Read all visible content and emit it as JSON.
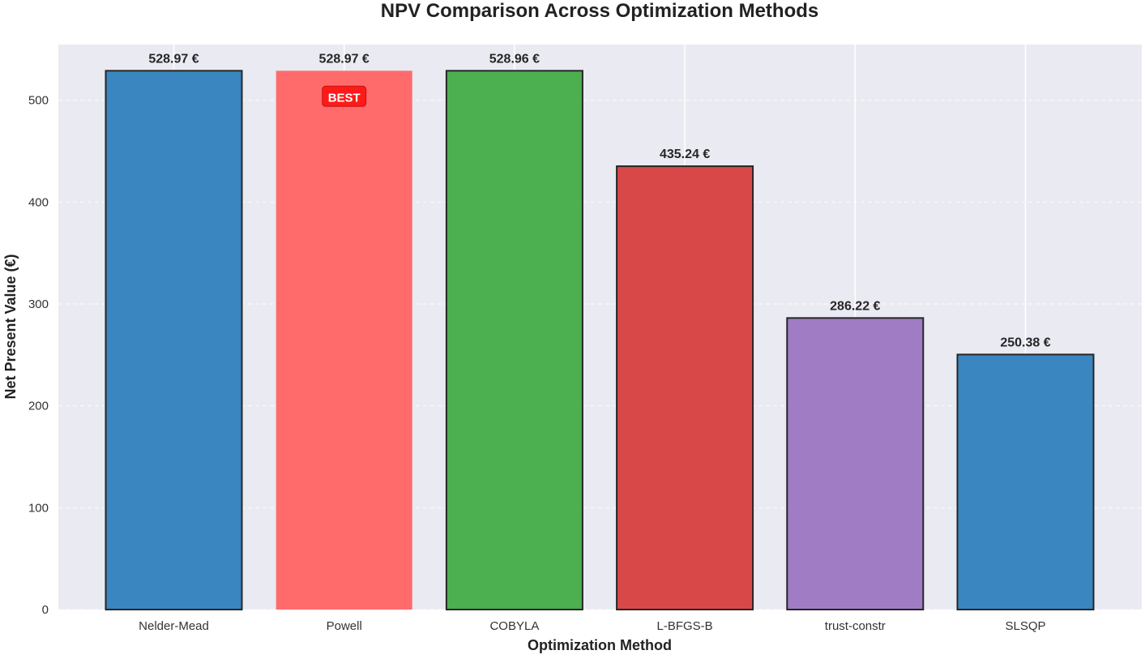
{
  "chart_data": {
    "type": "bar",
    "title": "NPV Comparison Across Optimization Methods",
    "xlabel": "Optimization Method",
    "ylabel": "Net Present Value (€)",
    "ylim": [
      0,
      550
    ],
    "yticks": [
      0,
      100,
      200,
      300,
      400,
      500
    ],
    "categories": [
      "Nelder-Mead",
      "Powell",
      "COBYLA",
      "L-BFGS-B",
      "trust-constr",
      "SLSQP"
    ],
    "values": [
      528.97,
      528.97,
      528.96,
      435.24,
      286.22,
      250.38
    ],
    "value_labels": [
      "528.97 €",
      "528.97 €",
      "528.96 €",
      "435.24 €",
      "286.22 €",
      "250.38 €"
    ],
    "colors": [
      "#3a86c0",
      "#ff6b6b",
      "#4caf50",
      "#d94848",
      "#a07cc5",
      "#3a86c0"
    ],
    "best": {
      "category": "Powell",
      "label": "BEST",
      "color": "#ff1a1a"
    },
    "grid": true,
    "background": "#eaeaf2"
  }
}
